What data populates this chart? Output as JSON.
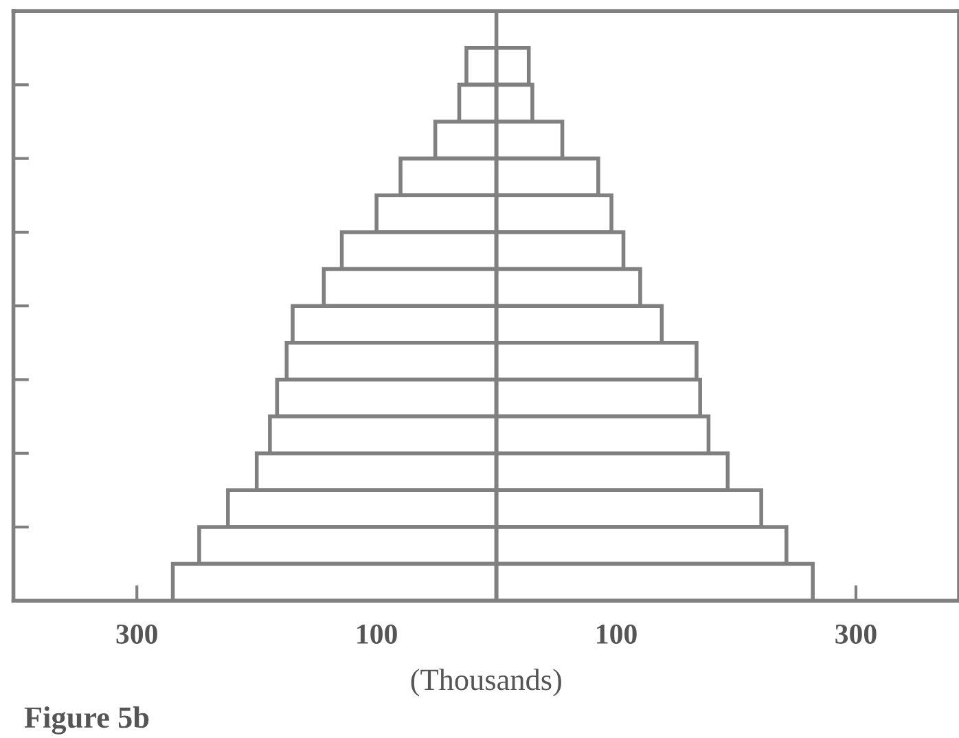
{
  "chart_data": {
    "type": "bar",
    "orientation": "horizontal",
    "xlabel": "(Thousands)",
    "annotations": [
      "Figure 5b"
    ],
    "stacked": true,
    "categories": [
      null,
      null,
      null,
      null,
      null,
      null,
      null,
      null,
      null,
      null,
      null,
      null,
      null,
      null,
      null,
      null
    ],
    "series": [
      {
        "color": "#ffffff",
        "values": [
          null,
          -25,
          -31,
          -51,
          -80,
          -100,
          -129,
          -144,
          -170,
          -175,
          -183,
          -189,
          -200,
          -224,
          -248,
          -270
        ]
      },
      {
        "color": "#ffffff",
        "values": [
          null,
          27,
          30,
          55,
          85,
          96,
          106,
          120,
          138,
          167,
          170,
          177,
          193,
          221,
          242,
          264
        ]
      }
    ],
    "xlim": [
      -403,
      386
    ],
    "xticks": [
      {
        "value": -300,
        "label": "300"
      },
      {
        "value": -200,
        "label": null
      },
      {
        "value": -100,
        "label": "100"
      },
      {
        "value": 0,
        "label": null
      },
      {
        "value": 100,
        "label": "100"
      },
      {
        "value": 200,
        "label": null
      },
      {
        "value": 300,
        "label": "300"
      }
    ],
    "ref_lines": [
      {
        "axis": "x",
        "value": 0,
        "color": "#808080"
      }
    ],
    "grid": false,
    "legend": false
  }
}
